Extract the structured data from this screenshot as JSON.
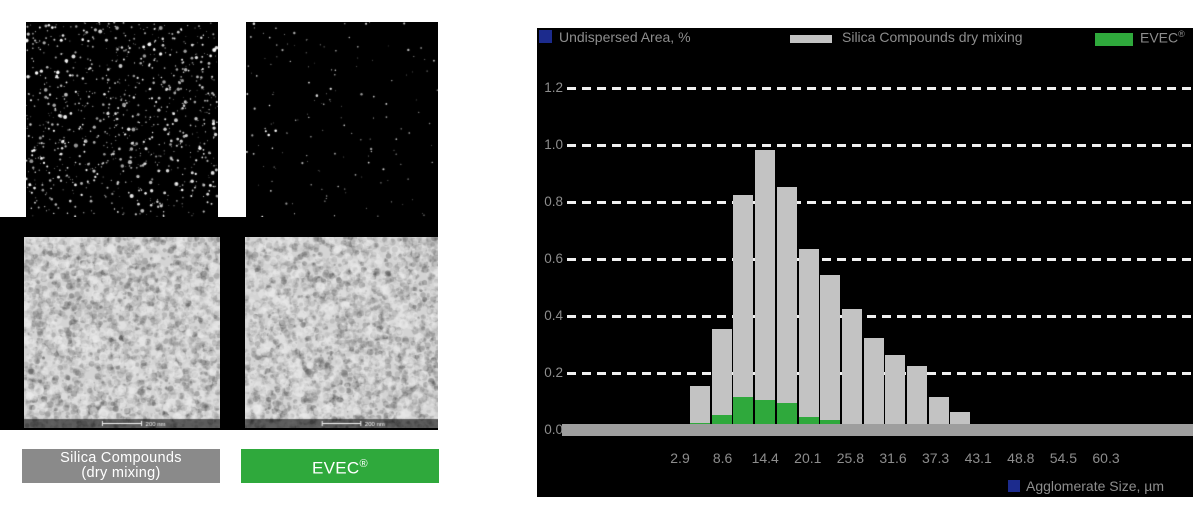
{
  "microscopy": {
    "captions": [
      {
        "line1": "Silica Compounds",
        "line2": "(dry mixing)",
        "box_color": "#8a8a8a"
      },
      {
        "line1": "EVEC®",
        "line2": "",
        "box_color": "#2fa93c"
      }
    ],
    "scale_label": "200 nm",
    "dispersion_dot_counts": {
      "dry_mixing": 950,
      "evec": 150
    }
  },
  "legend": {
    "undispersed_label": "Undispersed Area, %",
    "silica_label": "Silica Compounds dry mixing",
    "evec_label": "EVEC®",
    "agglomerate_label": "Agglomerate Size, µm",
    "marker_blue": "#1c2b8d",
    "marker_gray": "#c3c3c3",
    "marker_green": "#2fa93c"
  },
  "chart_data": {
    "type": "bar",
    "title": "",
    "ylabel": "Undispersed Area, %",
    "xlabel": "Agglomerate Size, µm",
    "ylim": [
      0,
      1.3
    ],
    "grid": "horizontal dashed, white on black",
    "legend_position": "top",
    "background": "#000000",
    "y_tick_labels": [
      "0.0",
      "0.2",
      "0.4",
      "0.6",
      "0.8",
      "1.0",
      "1.2"
    ],
    "x_tick_labels": [
      "2.9",
      "8.6",
      "14.4",
      "20.1",
      "25.8",
      "31.6",
      "37.3",
      "43.1",
      "48.8",
      "54.5",
      "60.3"
    ],
    "bin_centers_um": [
      5.7,
      8.6,
      11.5,
      14.4,
      17.3,
      20.1,
      23.0,
      25.8,
      28.7,
      31.6,
      34.5,
      37.3,
      40.2
    ],
    "series": [
      {
        "name": "Silica Compounds dry mixing",
        "color": "#c3c3c3",
        "values": [
          0.14,
          0.34,
          0.81,
          0.97,
          0.84,
          0.62,
          0.53,
          0.41,
          0.31,
          0.25,
          0.21,
          0.1,
          0.05
        ]
      },
      {
        "name": "EVEC®",
        "color": "#2fa93c",
        "values": [
          0.01,
          0.04,
          0.1,
          0.09,
          0.08,
          0.03,
          0.02,
          0,
          0,
          0,
          0,
          0,
          0
        ]
      }
    ]
  }
}
